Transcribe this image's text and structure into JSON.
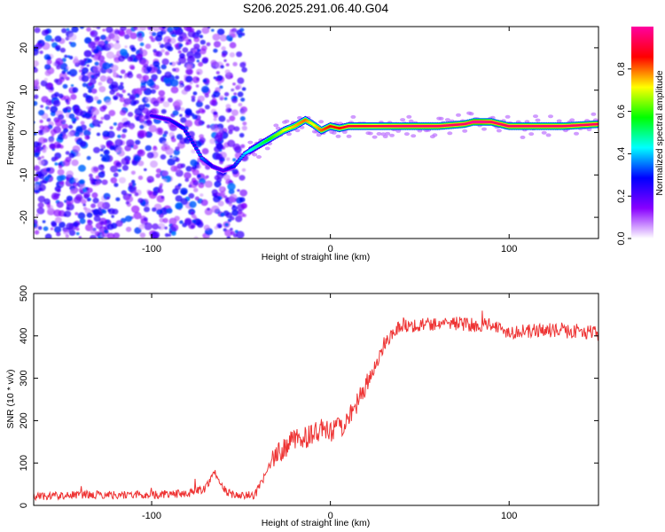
{
  "figure": {
    "title": "S206.2025.291.06.40.G04"
  },
  "chart_data": [
    {
      "type": "heatmap",
      "xlabel": "Height of straight line (km)",
      "ylabel": "Frequency (Hz)",
      "xlim": [
        -166,
        150
      ],
      "ylim": [
        -25,
        25
      ],
      "xticks": [
        -100,
        0,
        100
      ],
      "xtick_labels": [
        "-100",
        "0",
        "100"
      ],
      "yticks": [
        -20,
        -10,
        0,
        10,
        20
      ],
      "ytick_labels": [
        "-20",
        "-10",
        "0",
        "10",
        "20"
      ],
      "colorbar": {
        "label": "Normalized spectral amplitude",
        "range": [
          0,
          1
        ],
        "ticks": [
          0,
          0.2,
          0.4,
          0.6,
          0.8
        ],
        "tick_labels": [
          "0.0",
          "0.2",
          "0.4",
          "0.6",
          "0.8"
        ],
        "colors": [
          "#ffffff",
          "#8800ff",
          "#0000ff",
          "#00ffff",
          "#00ff00",
          "#ffff00",
          "#ff0000",
          "#ff00a0"
        ]
      },
      "ridge": {
        "x": [
          -100,
          -90,
          -82,
          -76,
          -72,
          -66,
          -60,
          -54,
          -48,
          -40,
          -32,
          -26,
          -20,
          -14,
          -10,
          -5,
          0,
          5,
          10,
          20,
          40,
          60,
          75,
          80,
          85,
          90,
          95,
          100,
          110,
          130,
          150
        ],
        "freq": [
          4,
          3,
          1,
          -3,
          -6,
          -8,
          -9,
          -8,
          -5,
          -3,
          -1,
          0.5,
          1.5,
          3,
          2,
          0.5,
          1.5,
          1,
          1.5,
          1.5,
          1.5,
          1.5,
          2,
          2.5,
          2.5,
          2.5,
          2,
          1.5,
          1.5,
          1.5,
          2
        ],
        "amplitude": [
          0.25,
          0.25,
          0.3,
          0.3,
          0.35,
          0.25,
          0.2,
          0.3,
          0.4,
          0.5,
          0.6,
          0.7,
          0.75,
          0.8,
          0.7,
          0.8,
          0.85,
          0.85,
          0.9,
          0.9,
          0.95,
          0.95,
          0.95,
          1.0,
          1.0,
          0.95,
          0.95,
          0.95,
          0.95,
          0.95,
          0.95
        ]
      },
      "noise_regions": [
        {
          "x_from": -166,
          "x_to": -68,
          "amplitude_max": 0.3
        },
        {
          "x_from": -66,
          "x_to": -48,
          "amplitude_max": 0.3
        }
      ]
    },
    {
      "type": "line",
      "xlabel": "Height of straight line (km)",
      "ylabel": "SNR (10 * v/v)",
      "xlim": [
        -166,
        150
      ],
      "ylim": [
        0,
        500
      ],
      "xticks": [
        -100,
        0,
        100
      ],
      "xtick_labels": [
        "-100",
        "0",
        "100"
      ],
      "yticks": [
        0,
        100,
        200,
        300,
        400,
        500
      ],
      "ytick_labels": [
        "0",
        "100",
        "200",
        "300",
        "400",
        "500"
      ],
      "series": [
        {
          "name": "SNR",
          "color": "#ee3333",
          "x": [
            -166,
            -140,
            -120,
            -100,
            -80,
            -70,
            -65,
            -62,
            -58,
            -50,
            -42,
            -35,
            -30,
            -25,
            -20,
            -15,
            -10,
            -5,
            0,
            5,
            10,
            15,
            20,
            25,
            30,
            35,
            40,
            50,
            60,
            70,
            80,
            90,
            95,
            100,
            110,
            120,
            130,
            140,
            150
          ],
          "y": [
            22,
            25,
            25,
            25,
            28,
            40,
            80,
            55,
            30,
            22,
            25,
            85,
            120,
            140,
            155,
            160,
            165,
            180,
            170,
            185,
            200,
            240,
            280,
            330,
            380,
            410,
            425,
            425,
            430,
            430,
            425,
            430,
            415,
            410,
            410,
            415,
            410,
            412,
            405
          ],
          "noise": 12
        }
      ]
    }
  ]
}
